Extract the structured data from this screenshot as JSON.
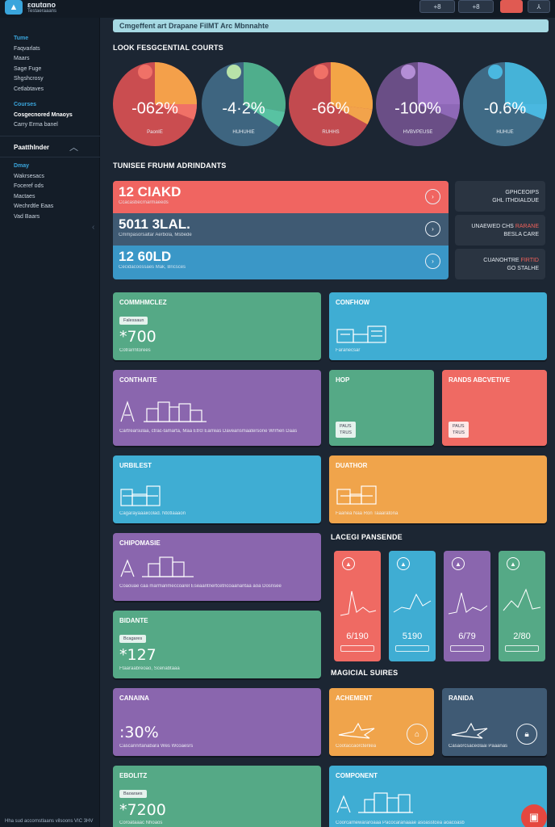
{
  "header": {
    "app_name": "ɛɑutɑno",
    "app_sub": "Testaeraaans",
    "buttons": [
      "+8",
      "+8",
      "",
      "⅄"
    ],
    "button_icons": [
      "plus-icon",
      "plus-icon",
      "notification-icon",
      "user-icon"
    ]
  },
  "sidebar": {
    "group1": {
      "head": "Tume",
      "items": [
        "Faqvarlats",
        "Maars",
        "Sage Fuge",
        "Shgshcrosy",
        "Cetlabtaves"
      ]
    },
    "group2": {
      "head": "Courses",
      "items": [
        "Cosgecnored Mnaoys",
        "Carry Erma banel"
      ]
    },
    "section": "Paatthlnder",
    "group3": {
      "head": "Dmay",
      "items": [
        "Wakrsesacs",
        "Foceref ods",
        "Mactaes",
        "Wechrdtle Eaas",
        "Vad Baars"
      ]
    },
    "footer": "Hha sud accornstlaans vilsoons VIC 3HV"
  },
  "banner": "Cmgeffent art Drapane FilMT Arc Mbnnahte",
  "pies_title": "LOOK FESGCENTIAL COURTS",
  "pies": [
    {
      "label": "-062%",
      "caption": "PaonIE",
      "base": "#ca4d50",
      "slice": "#f4a04a",
      "slice2": "#f07167",
      "knob": "#f07167"
    },
    {
      "label": "-4·2%",
      "caption": "HUHUHIE",
      "base": "#3e6580",
      "slice": "#4fae8c",
      "slice2": "#58c2a2",
      "knob": "#b8e3a9"
    },
    {
      "label": "-66%",
      "caption": "RUHHS",
      "base": "#c24a4f",
      "slice": "#f3a546",
      "slice2": "#f2a34b",
      "knob": "#f07167"
    },
    {
      "label": "-100%",
      "caption": "HVBVPEUSE",
      "base": "#6a4e86",
      "slice": "#9a72c3",
      "slice2": "#8e68b7",
      "knob": "#b48ed6"
    },
    {
      "label": "-0.6%",
      "caption": "HUHUE",
      "base": "#3f6a85",
      "slice": "#45b3d8",
      "slice2": "#4ab8e0",
      "knob": "#4ab8e0"
    }
  ],
  "rows_title": "TUNISEE FRUHM ADRINDANTS",
  "rows": [
    {
      "big": "12 CIAKD",
      "small": "Ccacasbecrnarmaeeds",
      "color": "#f06561"
    },
    {
      "big": "5011 3LAL.",
      "small": "Cmmpasorsaltar Aerbola, Msbede",
      "color": "#3f5a73"
    },
    {
      "big": "12 60LD",
      "small": "Cecidacoossaes Mak, Bricsces",
      "color": "#3a97c7"
    }
  ],
  "side_cards": [
    {
      "line1": "GPHCEOIPS",
      "line2": "GHL ITHDIALDUE",
      "hl": ""
    },
    {
      "line1": "UNAEWED CHS",
      "line2": "BESLA CARE",
      "hl": "RARANE"
    },
    {
      "line1": "CUANOHTRE",
      "line2": "GO STALHE",
      "hl": "FIRTID"
    }
  ],
  "cards": {
    "comm": {
      "title": "COMMHMCLEZ",
      "tag": "Falessaun",
      "val": "*700",
      "note": "Cotrarrntorees"
    },
    "confhow": {
      "title": "CONFHOW",
      "note": "Faranecsar"
    },
    "conthaite": {
      "title": "CONTHAITE",
      "note": "Cartrearsulaa, ctrac-tamarta, Maa Etrcl Earreas Daveansmaatersone Wrrhen Daas"
    },
    "hop": {
      "title": "HOP",
      "tag": "PAUS\nTRUS"
    },
    "rands": {
      "title": "RANDS ABCVETIVE",
      "tag": "PAUS\nTRUS"
    },
    "urbilest": {
      "title": "URBILEST",
      "note": "Cagarayaaaiicolad. Ntotlaaaon"
    },
    "duathor": {
      "title": "DUATHOR",
      "note": "Faanea Naa Ron Taaaratona"
    },
    "chipomasie": {
      "title": "CHIPOMASIE",
      "note": "Coaouae caa marmanmeccoarel Eseaantnertcetncoaanantaa aoa Dosnsee"
    },
    "lace_title": "LACEGI PANSENDE",
    "minis": [
      {
        "val": "6/190",
        "color": "#ef6a63"
      },
      {
        "val": "5190",
        "color": "#3fadd3"
      },
      {
        "val": "6/79",
        "color": "#8a66ae"
      },
      {
        "val": "2/80",
        "color": "#55a986"
      }
    ],
    "bidante": {
      "title": "BIDANTE",
      "tag": "Bcagares",
      "val": "*127",
      "note": "Ftaaraabreoao, Scenabtaaa"
    },
    "magical_title": "MAGICIAL SUIRES",
    "canaina": {
      "title": "CANAINA",
      "val": ":30%",
      "note": "Cascannrtanabara Wes Wcoaesrs"
    },
    "achement": {
      "title": "ACHEMENT",
      "note": "Cootaccaorctenlea"
    },
    "ranida": {
      "title": "RANIDA",
      "note": "Casaorcsaceolaai Paaanas"
    },
    "ebolitz": {
      "title": "EBOLITZ",
      "tag": "Baoaraes",
      "val": "*7200",
      "note": "Coroataaac Nhoaos"
    },
    "component": {
      "title": "COMPONENT",
      "note": "Coorcarnewararoaaa Pacocaranaaae asoasstcea aoacoasb"
    }
  }
}
